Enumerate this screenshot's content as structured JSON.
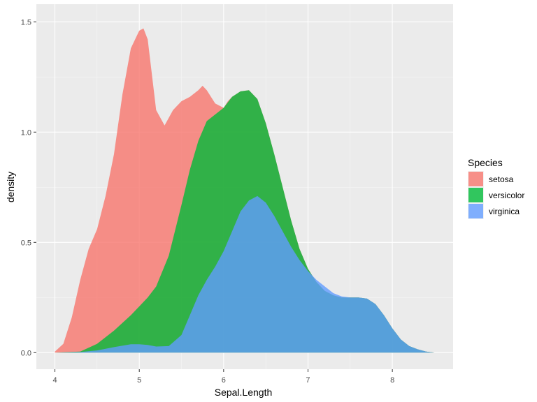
{
  "chart_data": {
    "type": "area",
    "subtype": "stacked-density",
    "xlabel": "Sepal.Length",
    "ylabel": "density",
    "xlim": [
      3.78,
      8.72
    ],
    "ylim": [
      -0.075,
      1.58
    ],
    "x_ticks": [
      4,
      5,
      6,
      7,
      8
    ],
    "x_tick_labels": [
      "4",
      "5",
      "6",
      "7",
      "8"
    ],
    "y_ticks": [
      0.0,
      0.5,
      1.0,
      1.5
    ],
    "y_tick_labels": [
      "0.0",
      "0.5",
      "1.0",
      "1.5"
    ],
    "grid": true,
    "legend": {
      "title": "Species",
      "position": "right"
    },
    "series": [
      {
        "name": "virginica",
        "color": "#619cff",
        "x": [
          4.0,
          4.3,
          4.5,
          4.7,
          4.9,
          5.0,
          5.1,
          5.2,
          5.35,
          5.5,
          5.6,
          5.7,
          5.8,
          5.9,
          6.0,
          6.1,
          6.2,
          6.3,
          6.4,
          6.5,
          6.6,
          6.7,
          6.8,
          6.9,
          7.0,
          7.1,
          7.2,
          7.3,
          7.4,
          7.5,
          7.6,
          7.7,
          7.8,
          7.9,
          8.0,
          8.1,
          8.2,
          8.3,
          8.4,
          8.5
        ],
        "y_cumulative_top": [
          0.0,
          0.003,
          0.01,
          0.025,
          0.038,
          0.038,
          0.035,
          0.028,
          0.03,
          0.08,
          0.17,
          0.26,
          0.33,
          0.39,
          0.46,
          0.55,
          0.64,
          0.69,
          0.71,
          0.68,
          0.62,
          0.55,
          0.48,
          0.42,
          0.37,
          0.33,
          0.3,
          0.27,
          0.255,
          0.25,
          0.25,
          0.245,
          0.22,
          0.17,
          0.11,
          0.06,
          0.03,
          0.015,
          0.005,
          0.0
        ]
      },
      {
        "name": "versicolor",
        "color": "#00ba38",
        "x": [
          4.0,
          4.3,
          4.5,
          4.7,
          4.9,
          5.0,
          5.1,
          5.2,
          5.35,
          5.5,
          5.6,
          5.7,
          5.8,
          5.9,
          6.0,
          6.1,
          6.2,
          6.3,
          6.4,
          6.5,
          6.6,
          6.7,
          6.8,
          6.9,
          7.0,
          7.1,
          7.2,
          7.3,
          7.4,
          7.5,
          7.6,
          7.7,
          7.8,
          7.9,
          8.0,
          8.1,
          8.2,
          8.3,
          8.4,
          8.5
        ],
        "y_cumulative_top": [
          0.0,
          0.005,
          0.04,
          0.1,
          0.17,
          0.21,
          0.25,
          0.3,
          0.44,
          0.67,
          0.83,
          0.96,
          1.05,
          1.08,
          1.11,
          1.16,
          1.185,
          1.19,
          1.15,
          1.04,
          0.9,
          0.75,
          0.6,
          0.47,
          0.38,
          0.32,
          0.28,
          0.26,
          0.25,
          0.25,
          0.25,
          0.245,
          0.22,
          0.17,
          0.11,
          0.06,
          0.03,
          0.015,
          0.005,
          0.0
        ]
      },
      {
        "name": "setosa",
        "color": "#f8766d",
        "x": [
          4.0,
          4.1,
          4.2,
          4.3,
          4.4,
          4.5,
          4.6,
          4.7,
          4.8,
          4.9,
          5.0,
          5.05,
          5.1,
          5.2,
          5.3,
          5.4,
          5.5,
          5.6,
          5.7,
          5.75,
          5.8,
          5.9,
          6.0,
          6.05,
          6.1,
          6.2,
          6.3,
          6.4,
          6.5,
          6.6,
          6.7,
          6.8,
          6.9,
          7.0,
          7.1,
          7.2,
          7.3,
          7.4,
          7.5,
          7.6,
          7.7,
          7.8,
          7.9,
          8.0,
          8.1,
          8.2,
          8.3,
          8.4,
          8.5
        ],
        "y_cumulative_top": [
          0.005,
          0.04,
          0.16,
          0.33,
          0.47,
          0.56,
          0.71,
          0.9,
          1.17,
          1.38,
          1.46,
          1.47,
          1.42,
          1.1,
          1.03,
          1.1,
          1.14,
          1.16,
          1.19,
          1.21,
          1.19,
          1.13,
          1.11,
          1.14,
          1.16,
          1.185,
          1.19,
          1.15,
          1.04,
          0.9,
          0.75,
          0.6,
          0.47,
          0.38,
          0.32,
          0.28,
          0.26,
          0.25,
          0.25,
          0.25,
          0.245,
          0.22,
          0.17,
          0.11,
          0.06,
          0.03,
          0.015,
          0.005,
          0.0
        ]
      }
    ],
    "colors": {
      "panel_background": "#ebebeb",
      "grid_major": "#ffffff",
      "grid_minor": "#f5f5f5"
    }
  }
}
